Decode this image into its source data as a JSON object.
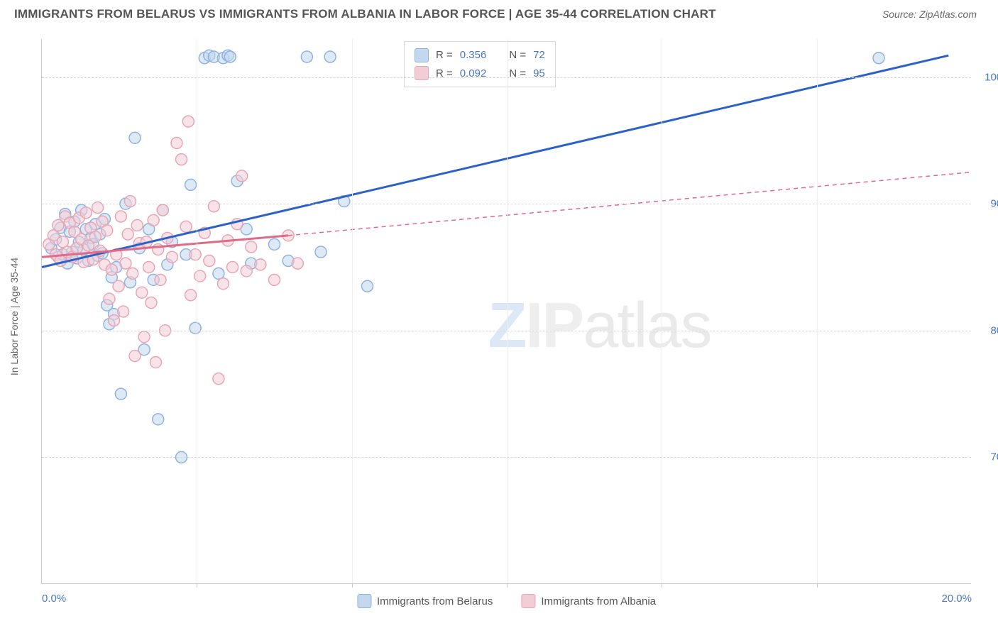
{
  "title": "IMMIGRANTS FROM BELARUS VS IMMIGRANTS FROM ALBANIA IN LABOR FORCE | AGE 35-44 CORRELATION CHART",
  "source": "Source: ZipAtlas.com",
  "ylabel": "In Labor Force | Age 35-44",
  "watermark": "ZIPatlas",
  "chart": {
    "type": "scatter",
    "xlim": [
      0,
      20
    ],
    "ylim": [
      60,
      103
    ],
    "ytick_values": [
      70,
      80,
      90,
      100
    ],
    "ytick_labels": [
      "70.0%",
      "80.0%",
      "90.0%",
      "100.0%"
    ],
    "xtick_values": [
      0,
      20
    ],
    "xtick_labels": [
      "0.0%",
      "20.0%"
    ],
    "x_minor_ticks": [
      3.33,
      6.67,
      10,
      13.33,
      16.67
    ],
    "background_color": "#ffffff",
    "grid_color": "#d8d8d8",
    "series": [
      {
        "name": "Immigrants from Belarus",
        "color": "#8fb3e0",
        "fill": "#c3d7ef",
        "fill_opacity": 0.55,
        "line_color": "#2c62c8",
        "r_value": "0.356",
        "n_value": "72",
        "marker_radius": 8,
        "regression": {
          "x1": 0,
          "y1": 85,
          "x2": 19.5,
          "y2": 101.7,
          "dash_after_x": 20
        },
        "points": [
          [
            0.2,
            86.5
          ],
          [
            0.3,
            87.2
          ],
          [
            0.35,
            85.8
          ],
          [
            0.4,
            88.1
          ],
          [
            0.45,
            86.0
          ],
          [
            0.5,
            89.2
          ],
          [
            0.55,
            85.3
          ],
          [
            0.6,
            87.8
          ],
          [
            0.65,
            86.2
          ],
          [
            0.7,
            88.6
          ],
          [
            0.75,
            85.7
          ],
          [
            0.8,
            87.0
          ],
          [
            0.85,
            89.5
          ],
          [
            0.9,
            86.4
          ],
          [
            0.95,
            88.0
          ],
          [
            1.0,
            85.5
          ],
          [
            1.05,
            87.3
          ],
          [
            1.1,
            86.8
          ],
          [
            1.15,
            88.4
          ],
          [
            1.2,
            85.9
          ],
          [
            1.25,
            87.6
          ],
          [
            1.3,
            86.1
          ],
          [
            1.35,
            88.8
          ],
          [
            1.4,
            82.0
          ],
          [
            1.45,
            80.5
          ],
          [
            1.5,
            84.2
          ],
          [
            1.55,
            81.3
          ],
          [
            1.6,
            85.0
          ],
          [
            1.7,
            75.0
          ],
          [
            1.8,
            90.0
          ],
          [
            1.9,
            83.8
          ],
          [
            2.0,
            95.2
          ],
          [
            2.1,
            86.5
          ],
          [
            2.2,
            78.5
          ],
          [
            2.3,
            88.0
          ],
          [
            2.4,
            84.0
          ],
          [
            2.5,
            73.0
          ],
          [
            2.6,
            89.5
          ],
          [
            2.7,
            85.2
          ],
          [
            2.8,
            87.0
          ],
          [
            3.0,
            70.0
          ],
          [
            3.1,
            86.0
          ],
          [
            3.2,
            91.5
          ],
          [
            3.3,
            80.2
          ],
          [
            3.5,
            101.5
          ],
          [
            3.6,
            101.7
          ],
          [
            3.7,
            101.6
          ],
          [
            3.8,
            84.5
          ],
          [
            3.9,
            101.5
          ],
          [
            4.0,
            101.7
          ],
          [
            4.05,
            101.6
          ],
          [
            4.2,
            91.8
          ],
          [
            4.4,
            88.0
          ],
          [
            4.5,
            85.3
          ],
          [
            5.0,
            86.8
          ],
          [
            5.3,
            85.5
          ],
          [
            5.7,
            101.6
          ],
          [
            6.0,
            86.2
          ],
          [
            6.2,
            101.6
          ],
          [
            6.5,
            90.2
          ],
          [
            7.0,
            83.5
          ],
          [
            18.0,
            101.5
          ]
        ]
      },
      {
        "name": "Immigrants from Albania",
        "color": "#e8a5b5",
        "fill": "#f3cdd6",
        "fill_opacity": 0.55,
        "line_color": "#e06a88",
        "r_value": "0.092",
        "n_value": "95",
        "marker_radius": 8,
        "regression": {
          "x1": 0,
          "y1": 85.8,
          "x2": 5.3,
          "y2": 87.5,
          "dash_after_x": 5.3,
          "dash_x2": 20,
          "dash_y2": 92.5
        },
        "points": [
          [
            0.15,
            86.8
          ],
          [
            0.25,
            87.5
          ],
          [
            0.3,
            86.0
          ],
          [
            0.35,
            88.3
          ],
          [
            0.4,
            85.5
          ],
          [
            0.45,
            87.0
          ],
          [
            0.5,
            89.0
          ],
          [
            0.55,
            86.2
          ],
          [
            0.6,
            88.5
          ],
          [
            0.65,
            85.8
          ],
          [
            0.7,
            87.8
          ],
          [
            0.75,
            86.5
          ],
          [
            0.8,
            88.9
          ],
          [
            0.85,
            87.2
          ],
          [
            0.9,
            85.4
          ],
          [
            0.95,
            89.3
          ],
          [
            1.0,
            86.7
          ],
          [
            1.05,
            88.1
          ],
          [
            1.1,
            85.6
          ],
          [
            1.15,
            87.4
          ],
          [
            1.2,
            89.7
          ],
          [
            1.25,
            86.3
          ],
          [
            1.3,
            88.6
          ],
          [
            1.35,
            85.2
          ],
          [
            1.4,
            87.9
          ],
          [
            1.45,
            82.5
          ],
          [
            1.5,
            84.8
          ],
          [
            1.55,
            80.8
          ],
          [
            1.6,
            86.0
          ],
          [
            1.65,
            83.5
          ],
          [
            1.7,
            89.0
          ],
          [
            1.75,
            81.5
          ],
          [
            1.8,
            85.3
          ],
          [
            1.85,
            87.6
          ],
          [
            1.9,
            90.2
          ],
          [
            1.95,
            84.5
          ],
          [
            2.0,
            78.0
          ],
          [
            2.05,
            88.3
          ],
          [
            2.1,
            86.9
          ],
          [
            2.15,
            83.0
          ],
          [
            2.2,
            79.5
          ],
          [
            2.25,
            87.0
          ],
          [
            2.3,
            85.0
          ],
          [
            2.35,
            82.2
          ],
          [
            2.4,
            88.7
          ],
          [
            2.45,
            77.5
          ],
          [
            2.5,
            86.4
          ],
          [
            2.55,
            84.0
          ],
          [
            2.6,
            89.5
          ],
          [
            2.65,
            80.0
          ],
          [
            2.7,
            87.3
          ],
          [
            2.8,
            85.8
          ],
          [
            2.9,
            94.8
          ],
          [
            3.0,
            93.5
          ],
          [
            3.1,
            88.2
          ],
          [
            3.15,
            96.5
          ],
          [
            3.2,
            82.8
          ],
          [
            3.3,
            86.0
          ],
          [
            3.4,
            84.3
          ],
          [
            3.5,
            87.7
          ],
          [
            3.6,
            85.5
          ],
          [
            3.7,
            89.8
          ],
          [
            3.8,
            76.2
          ],
          [
            3.9,
            83.7
          ],
          [
            4.0,
            87.1
          ],
          [
            4.1,
            85.0
          ],
          [
            4.2,
            88.4
          ],
          [
            4.3,
            92.2
          ],
          [
            4.4,
            84.7
          ],
          [
            4.5,
            86.6
          ],
          [
            4.7,
            85.2
          ],
          [
            5.0,
            84.0
          ],
          [
            5.3,
            87.5
          ],
          [
            5.5,
            85.3
          ]
        ]
      }
    ]
  },
  "legend": {
    "r_label": "R =",
    "n_label": "N ="
  },
  "bottom_legend": {
    "items": [
      "Immigrants from Belarus",
      "Immigrants from Albania"
    ]
  }
}
